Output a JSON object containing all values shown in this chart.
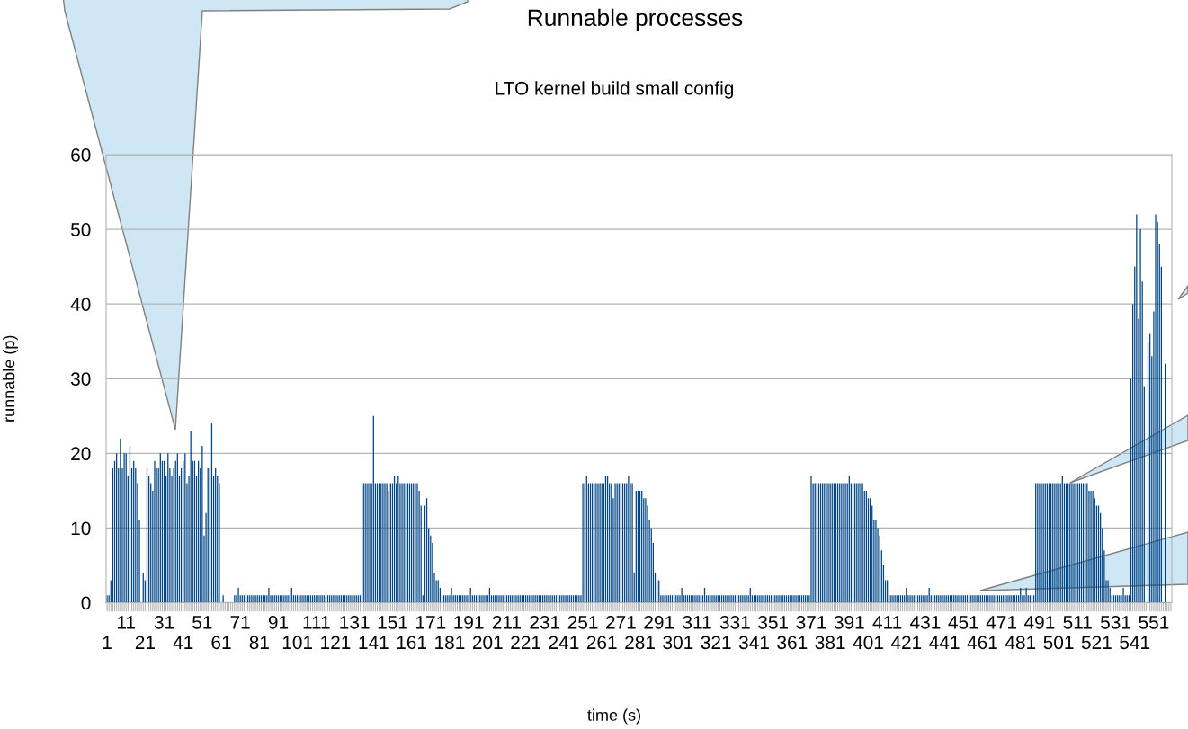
{
  "chart_data": {
    "type": "bar",
    "title": "Runnable processes",
    "subtitle": "LTO kernel build small config",
    "xlabel": "time (s)",
    "ylabel": "runnable (p)",
    "color": "#004586",
    "ylim": [
      0,
      60
    ],
    "yticks": [
      0,
      10,
      20,
      30,
      40,
      50,
      60
    ],
    "grid": "y",
    "categories": [
      "1",
      null,
      null,
      null,
      null,
      null,
      null,
      null,
      null,
      null,
      "11",
      null,
      null,
      null,
      null,
      null,
      null,
      null,
      null,
      null,
      "21",
      null,
      null,
      null,
      null,
      null,
      null,
      null,
      null,
      null,
      "31",
      null,
      null,
      null,
      null,
      null,
      null,
      null,
      null,
      null,
      "41",
      null,
      null,
      null,
      null,
      null,
      null,
      null,
      null,
      null,
      "51",
      null,
      null,
      null,
      null,
      null,
      null,
      null,
      null,
      null,
      "61",
      null,
      null,
      null,
      null,
      null,
      null,
      null,
      null,
      null,
      "71",
      null,
      null,
      null,
      null,
      null,
      null,
      null,
      null,
      null,
      "81",
      null,
      null,
      null,
      null,
      null,
      null,
      null,
      null,
      null,
      "91",
      null,
      null,
      null,
      null,
      null,
      null,
      null,
      null,
      null,
      "101",
      null,
      null,
      null,
      null,
      null,
      null,
      null,
      null,
      null,
      "111",
      null,
      null,
      null,
      null,
      null,
      null,
      null,
      null,
      null,
      "121",
      null,
      null,
      null,
      null,
      null,
      null,
      null,
      null,
      null,
      "131",
      null,
      null,
      null,
      null,
      null,
      null,
      null,
      null,
      null,
      "141",
      null,
      null,
      null,
      null,
      null,
      null,
      null,
      null,
      null,
      "151",
      null,
      null,
      null,
      null,
      null,
      null,
      null,
      null,
      null,
      "161",
      null,
      null,
      null,
      null,
      null,
      null,
      null,
      null,
      null,
      "171",
      null,
      null,
      null,
      null,
      null,
      null,
      null,
      null,
      null,
      "181",
      null,
      null,
      null,
      null,
      null,
      null,
      null,
      null,
      null,
      "191",
      null,
      null,
      null,
      null,
      null,
      null,
      null,
      null,
      null,
      "201",
      null,
      null,
      null,
      null,
      null,
      null,
      null,
      null,
      null,
      "211",
      null,
      null,
      null,
      null,
      null,
      null,
      null,
      null,
      null,
      "221",
      null,
      null,
      null,
      null,
      null,
      null,
      null,
      null,
      null,
      "231",
      null,
      null,
      null,
      null,
      null,
      null,
      null,
      null,
      null,
      "241",
      null,
      null,
      null,
      null,
      null,
      null,
      null,
      null,
      null,
      "251",
      null,
      null,
      null,
      null,
      null,
      null,
      null,
      null,
      null,
      "261",
      null,
      null,
      null,
      null,
      null,
      null,
      null,
      null,
      null,
      "271",
      null,
      null,
      null,
      null,
      null,
      null,
      null,
      null,
      null,
      "281",
      null,
      null,
      null,
      null,
      null,
      null,
      null,
      null,
      null,
      "291",
      null,
      null,
      null,
      null,
      null,
      null,
      null,
      null,
      null,
      "301",
      null,
      null,
      null,
      null,
      null,
      null,
      null,
      null,
      null,
      "311",
      null,
      null,
      null,
      null,
      null,
      null,
      null,
      null,
      null,
      "321",
      null,
      null,
      null,
      null,
      null,
      null,
      null,
      null,
      null,
      "331",
      null,
      null,
      null,
      null,
      null,
      null,
      null,
      null,
      null,
      "341",
      null,
      null,
      null,
      null,
      null,
      null,
      null,
      null,
      null,
      "351",
      null,
      null,
      null,
      null,
      null,
      null,
      null,
      null,
      null,
      "361",
      null,
      null,
      null,
      null,
      null,
      null,
      null,
      null,
      null,
      "371",
      null,
      null,
      null,
      null,
      null,
      null,
      null,
      null,
      null,
      "381",
      null,
      null,
      null,
      null,
      null,
      null,
      null,
      null,
      null,
      "391",
      null,
      null,
      null,
      null,
      null,
      null,
      null,
      null,
      null,
      "401",
      null,
      null,
      null,
      null,
      null,
      null,
      null,
      null,
      null,
      "411",
      null,
      null,
      null,
      null,
      null,
      null,
      null,
      null,
      null,
      "421",
      null,
      null,
      null,
      null,
      null,
      null,
      null,
      null,
      null,
      "431",
      null,
      null,
      null,
      null,
      null,
      null,
      null,
      null,
      null,
      "441",
      null,
      null,
      null,
      null,
      null,
      null,
      null,
      null,
      null,
      "451",
      null,
      null,
      null,
      null,
      null,
      null,
      null,
      null,
      null,
      "461",
      null,
      null,
      null,
      null,
      null,
      null,
      null,
      null,
      null,
      "471",
      null,
      null,
      null,
      null,
      null,
      null,
      null,
      null,
      null,
      "481",
      null,
      null,
      null,
      null,
      null,
      null,
      null,
      null,
      null,
      "491",
      null,
      null,
      null,
      null,
      null,
      null,
      null,
      null,
      null,
      "501",
      null,
      null,
      null,
      null,
      null,
      null,
      null,
      null,
      null,
      "511",
      null,
      null,
      null,
      null,
      null,
      null,
      null,
      null,
      null,
      "521",
      null,
      null,
      null,
      null,
      null,
      null,
      null,
      null,
      null,
      "531",
      null,
      null,
      null,
      null,
      null,
      null,
      null,
      null,
      null,
      "541",
      null,
      null,
      null,
      null,
      null,
      null,
      null,
      null,
      null,
      "551",
      null,
      null,
      null,
      null,
      null,
      null,
      null,
      null,
      null
    ],
    "values": [
      1,
      1,
      3,
      18,
      19,
      20,
      18,
      22,
      18,
      20,
      20,
      17,
      21,
      18,
      19,
      18,
      16,
      11,
      0,
      4,
      3,
      18,
      17,
      16,
      15,
      19,
      18,
      18,
      20,
      19,
      19,
      17,
      20,
      18,
      17,
      18,
      19,
      20,
      17,
      18,
      19,
      20,
      16,
      17,
      23,
      19,
      19,
      17,
      19,
      18,
      21,
      9,
      12,
      18,
      18,
      24,
      17,
      18,
      17,
      16,
      0,
      1,
      0,
      0,
      0,
      0,
      0,
      1,
      1,
      2,
      1,
      1,
      1,
      1,
      1,
      1,
      1,
      1,
      1,
      1,
      1,
      1,
      1,
      1,
      1,
      2,
      1,
      1,
      1,
      1,
      1,
      1,
      1,
      1,
      1,
      1,
      1,
      2,
      1,
      1,
      1,
      1,
      1,
      1,
      1,
      1,
      1,
      1,
      1,
      1,
      1,
      1,
      1,
      1,
      1,
      1,
      1,
      1,
      1,
      1,
      1,
      1,
      1,
      1,
      1,
      1,
      1,
      1,
      1,
      1,
      1,
      1,
      1,
      1,
      16,
      16,
      16,
      16,
      16,
      16,
      25,
      16,
      16,
      16,
      16,
      16,
      16,
      16,
      15,
      16,
      16,
      17,
      16,
      17,
      16,
      16,
      16,
      16,
      16,
      16,
      16,
      16,
      16,
      16,
      15,
      13,
      1,
      13,
      14,
      10,
      9,
      8,
      4,
      3,
      3,
      2,
      1,
      1,
      1,
      1,
      1,
      2,
      1,
      1,
      1,
      1,
      1,
      1,
      1,
      1,
      1,
      2,
      1,
      1,
      1,
      1,
      1,
      1,
      1,
      1,
      1,
      2,
      1,
      1,
      1,
      1,
      1,
      1,
      1,
      1,
      1,
      1,
      1,
      1,
      1,
      1,
      1,
      1,
      1,
      1,
      1,
      1,
      1,
      1,
      1,
      1,
      1,
      1,
      1,
      1,
      1,
      1,
      1,
      1,
      1,
      1,
      1,
      1,
      1,
      1,
      1,
      1,
      1,
      1,
      1,
      1,
      1,
      1,
      1,
      1,
      16,
      16,
      17,
      16,
      16,
      16,
      16,
      16,
      16,
      16,
      16,
      16,
      17,
      17,
      16,
      16,
      14,
      16,
      16,
      16,
      16,
      16,
      16,
      16,
      17,
      16,
      16,
      4,
      15,
      15,
      15,
      15,
      14,
      14,
      13,
      11,
      10,
      8,
      4,
      3,
      3,
      1,
      1,
      1,
      1,
      1,
      1,
      1,
      1,
      1,
      1,
      1,
      2,
      1,
      1,
      1,
      1,
      1,
      1,
      1,
      1,
      1,
      1,
      1,
      2,
      1,
      1,
      1,
      1,
      1,
      1,
      1,
      1,
      1,
      1,
      1,
      1,
      1,
      1,
      1,
      1,
      1,
      1,
      1,
      1,
      1,
      1,
      1,
      2,
      1,
      1,
      1,
      1,
      1,
      1,
      1,
      1,
      1,
      1,
      1,
      1,
      1,
      1,
      1,
      1,
      1,
      1,
      1,
      1,
      1,
      1,
      1,
      1,
      1,
      1,
      1,
      1,
      1,
      1,
      1,
      17,
      16,
      16,
      16,
      16,
      16,
      16,
      16,
      16,
      16,
      16,
      16,
      16,
      16,
      16,
      16,
      16,
      16,
      16,
      16,
      17,
      16,
      16,
      16,
      16,
      16,
      16,
      16,
      15,
      15,
      14,
      14,
      13,
      11,
      11,
      10,
      9,
      7,
      5,
      3,
      3,
      1,
      1,
      1,
      1,
      1,
      1,
      1,
      1,
      1,
      2,
      1,
      1,
      1,
      1,
      1,
      1,
      1,
      1,
      1,
      1,
      1,
      2,
      1,
      1,
      1,
      1,
      1,
      1,
      1,
      1,
      1,
      1,
      1,
      1,
      1,
      1,
      1,
      1,
      1,
      1,
      1,
      1,
      1,
      1,
      1,
      1,
      1,
      1,
      1,
      1,
      1,
      1,
      1,
      1,
      1,
      1,
      1,
      1,
      1,
      1,
      1,
      1,
      1,
      1,
      1,
      1,
      1,
      1,
      1,
      2,
      1,
      1,
      2,
      1,
      1,
      1,
      1,
      16,
      16,
      16,
      16,
      16,
      16,
      16,
      16,
      16,
      16,
      16,
      16,
      16,
      16,
      17,
      16,
      16,
      16,
      16,
      16,
      16,
      16,
      16,
      16,
      16,
      16,
      16,
      16,
      15,
      15,
      15,
      14,
      13,
      13,
      12,
      10,
      7,
      3,
      3,
      2,
      1,
      1,
      1,
      1,
      1,
      1,
      2,
      1,
      1,
      1,
      30,
      40,
      45,
      52,
      38,
      50,
      43,
      29,
      0,
      35,
      36,
      33,
      39,
      52,
      51,
      48,
      45,
      0,
      32,
      0,
      0,
      0
    ]
  }
}
